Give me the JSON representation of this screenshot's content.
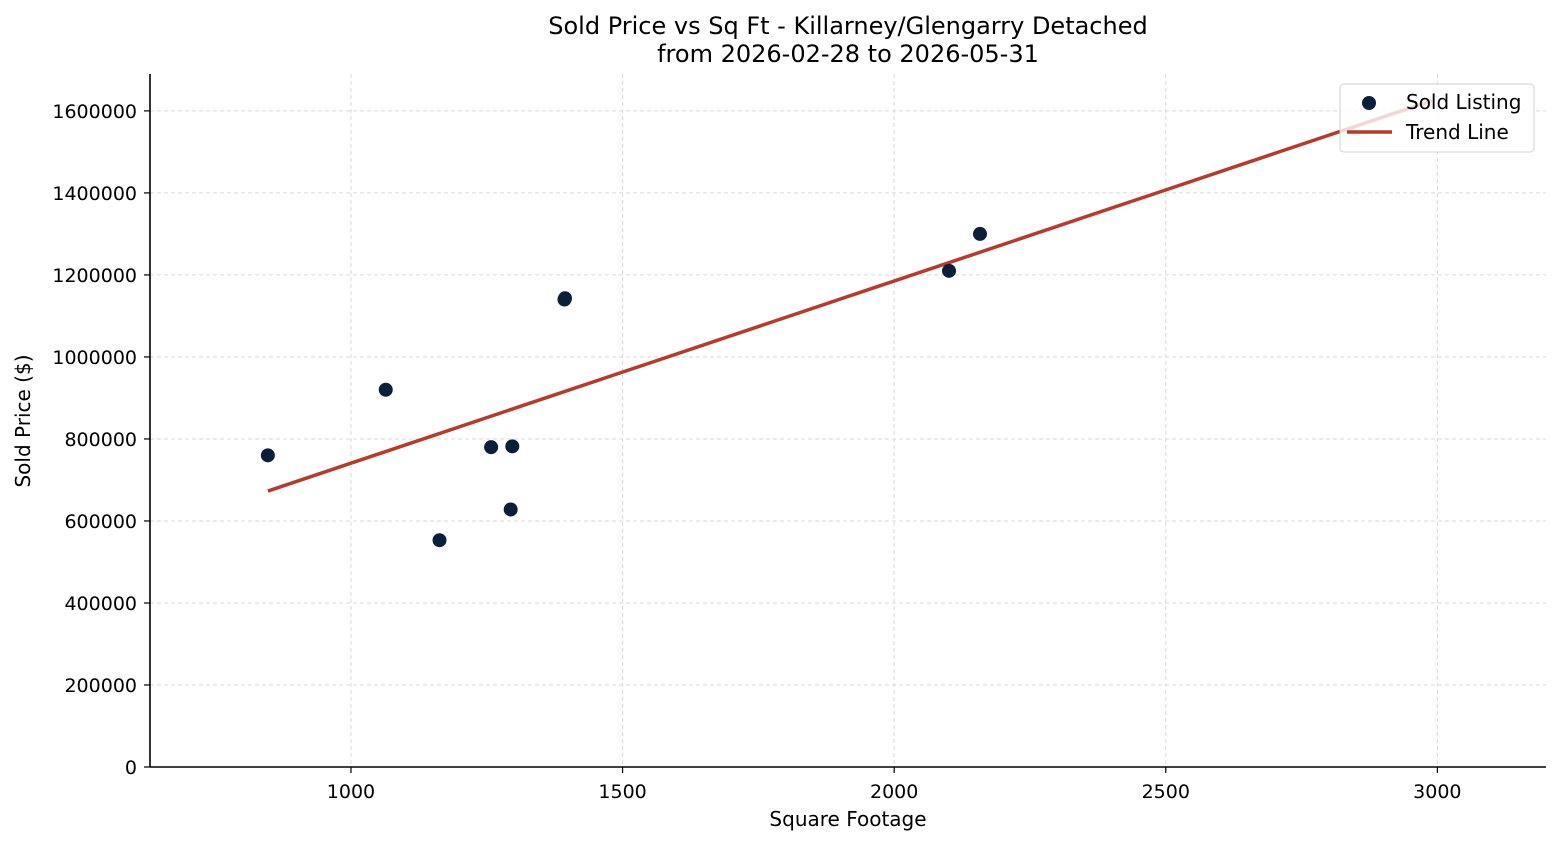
{
  "chart_data": {
    "type": "scatter",
    "title": "Sold Price vs Sq Ft - Killarney/Glengarry Detached",
    "subtitle": "from 2026-02-28 to 2026-05-31",
    "xlabel": "Square Footage",
    "ylabel": "Sold Price ($)",
    "xlim": [
      630,
      3200
    ],
    "ylim": [
      0,
      1690000
    ],
    "x_ticks": [
      1000,
      1500,
      2000,
      2500,
      3000
    ],
    "y_ticks": [
      0,
      200000,
      400000,
      600000,
      800000,
      1000000,
      1200000,
      1400000,
      1600000
    ],
    "grid": true,
    "legend_position": "top-right",
    "series": [
      {
        "name": "Sold Listing",
        "kind": "scatter",
        "color": "#0b1f3a",
        "points": [
          {
            "x": 847,
            "y": 760000
          },
          {
            "x": 1064,
            "y": 920000
          },
          {
            "x": 1163,
            "y": 553000
          },
          {
            "x": 1258,
            "y": 780000
          },
          {
            "x": 1294,
            "y": 628000
          },
          {
            "x": 1297,
            "y": 782000
          },
          {
            "x": 1393,
            "y": 1140000
          },
          {
            "x": 1394,
            "y": 1143000
          },
          {
            "x": 2101,
            "y": 1210000
          },
          {
            "x": 2158,
            "y": 1300000
          }
        ]
      },
      {
        "name": "Trend Line",
        "kind": "line",
        "color": "#b83a2f",
        "points": [
          {
            "x": 847,
            "y": 673000
          },
          {
            "x": 2990,
            "y": 1625000
          }
        ]
      }
    ]
  }
}
